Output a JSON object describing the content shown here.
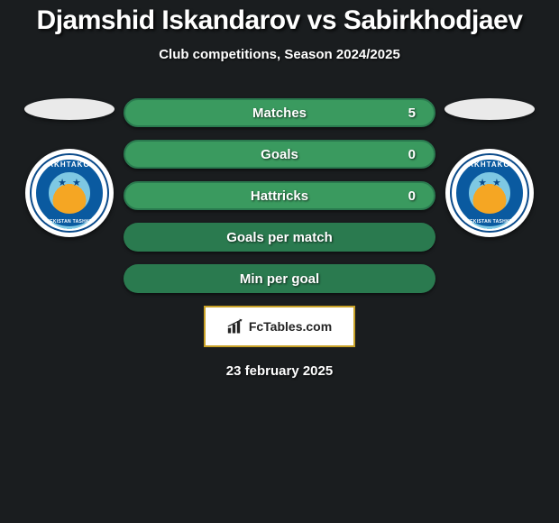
{
  "colors": {
    "background": "#1a1d1f",
    "text_primary": "#ffffff",
    "accent_gold": "#c9a227",
    "pill_green": "#2a7a4f",
    "pill_green_inner": "#3a9a5f",
    "badge_ring": "#0a5aa0",
    "badge_border": "#0a4a8a",
    "box_bg": "#ffffff"
  },
  "header": {
    "title": "Djamshid Iskandarov vs Sabirkhodjaev",
    "title_fontsize": 30,
    "subtitle": "Club competitions, Season 2024/2025",
    "subtitle_fontsize": 15
  },
  "player_left": {
    "name": "Djamshid Iskandarov",
    "club": {
      "name": "Pakhtakor",
      "top_text": "PAKHTAKOR",
      "bottom_text": "UZBEKISTAN TASHKENT"
    }
  },
  "player_right": {
    "name": "Sabirkhodjaev",
    "club": {
      "name": "Pakhtakor",
      "top_text": "PAKHTAKOR",
      "bottom_text": "UZBEKISTAN TASHKENT"
    }
  },
  "stats": [
    {
      "label": "Matches",
      "left_value": "",
      "right_value": "5",
      "type": "split",
      "left_color": "#2a7a4f",
      "right_color": "#3a9a5f",
      "split_pct": 0
    },
    {
      "label": "Goals",
      "left_value": "",
      "right_value": "0",
      "type": "split",
      "left_color": "#2a7a4f",
      "right_color": "#3a9a5f",
      "split_pct": 0
    },
    {
      "label": "Hattricks",
      "left_value": "",
      "right_value": "0",
      "type": "split",
      "left_color": "#2a7a4f",
      "right_color": "#3a9a5f",
      "split_pct": 0
    },
    {
      "label": "Goals per match",
      "type": "solid",
      "color": "#2a7a4f"
    },
    {
      "label": "Min per goal",
      "type": "solid",
      "color": "#2a7a4f"
    }
  ],
  "stats_style": {
    "pill_height": 32,
    "pill_radius": 16,
    "gap": 14,
    "label_fontsize": 15,
    "value_fontsize": 15
  },
  "watermark": {
    "text": "FcTables.com",
    "border_color": "#c9a227",
    "bg": "#ffffff",
    "icon": "bars"
  },
  "footer": {
    "date": "23 february 2025",
    "date_fontsize": 15
  }
}
